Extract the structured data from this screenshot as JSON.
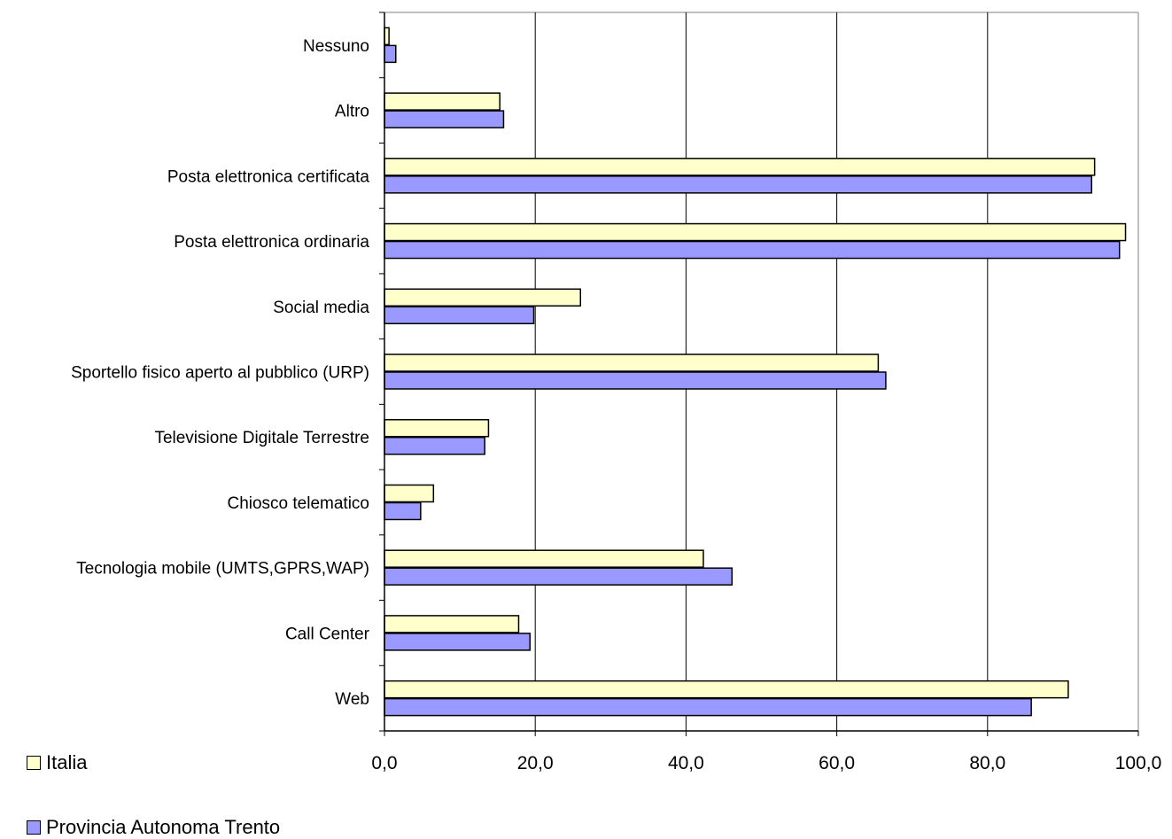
{
  "chart_data": {
    "type": "bar",
    "orientation": "horizontal",
    "title": "",
    "xlabel": "",
    "ylabel": "",
    "categories": [
      "Nessuno",
      "Altro",
      "Posta elettronica certificata",
      "Posta elettronica ordinaria",
      "Social media",
      "Sportello fisico aperto al pubblico (URP)",
      "Televisione Digitale Terrestre",
      "Chiosco telematico",
      "Tecnologia mobile (UMTS,GPRS,WAP)",
      "Call Center",
      "Web"
    ],
    "series": [
      {
        "name": "Italia",
        "color": "#ffffcc",
        "values": [
          0.6,
          15.3,
          94.2,
          98.3,
          26.0,
          65.5,
          13.8,
          6.5,
          42.3,
          17.8,
          90.7
        ]
      },
      {
        "name": "Provincia Autonoma Trento",
        "color": "#9999ff",
        "values": [
          1.5,
          15.8,
          93.8,
          97.5,
          19.8,
          66.5,
          13.3,
          4.8,
          46.1,
          19.3,
          85.8
        ]
      }
    ],
    "xlim": [
      0,
      100
    ],
    "xticks": [
      "0,0",
      "20,0",
      "40,0",
      "60,0",
      "80,0",
      "100,0"
    ],
    "xtick_values": [
      0,
      20,
      40,
      60,
      80,
      100
    ],
    "grid": "vertical",
    "legend_position": "bottom-left"
  }
}
